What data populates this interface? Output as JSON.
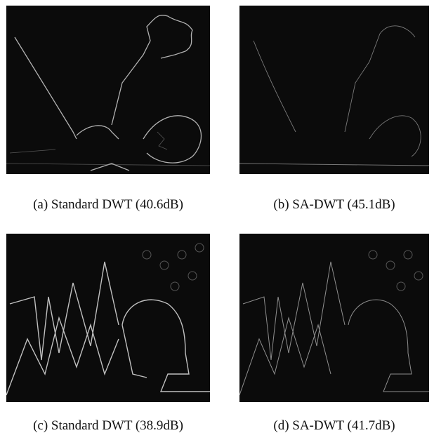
{
  "figures": [
    {
      "caption": "(a) Standard DWT (40.6dB)"
    },
    {
      "caption": "(b) SA-DWT (45.1dB)"
    },
    {
      "caption": "(c) Standard DWT (38.9dB)"
    },
    {
      "caption": "(d) SA-DWT (41.7dB)"
    }
  ]
}
